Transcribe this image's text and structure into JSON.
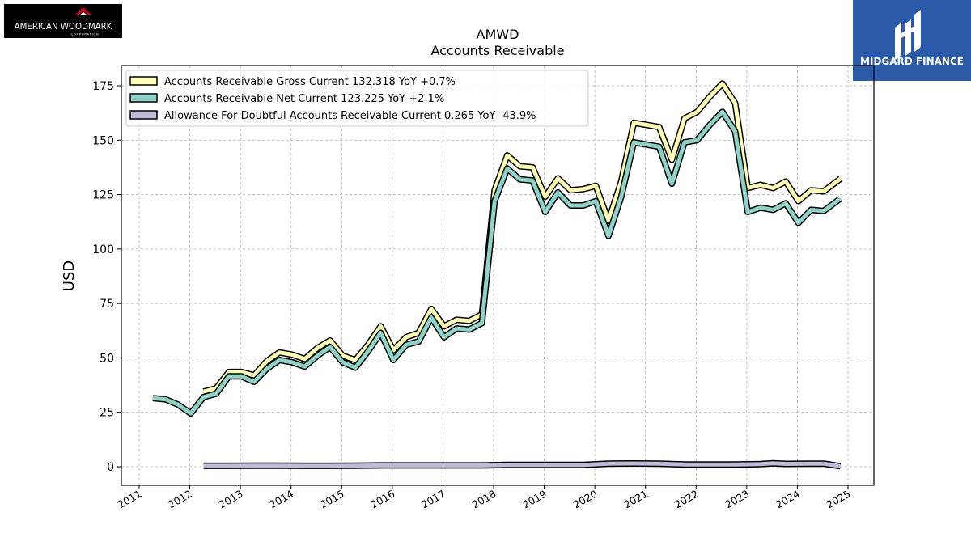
{
  "branding": {
    "left_logo_text": "AMERICAN WOODMARK",
    "left_logo_subtext": "CORPORATION",
    "right_logo_text": "MIDGARD FINANCE",
    "colors": {
      "left_logo_bg": "#000000",
      "left_logo_mark": "#d0021b",
      "right_logo_bg": "#2b5ba8"
    }
  },
  "chart_data": {
    "type": "line",
    "title": "AMWD",
    "subtitle": "Accounts Receivable",
    "ylabel": "USD",
    "xlabel": "",
    "xlim": [
      2010.65,
      2025.15
    ],
    "ylim": [
      -8,
      185
    ],
    "x_ticks": [
      "2011",
      "2012",
      "2013",
      "2014",
      "2015",
      "2016",
      "2017",
      "2018",
      "2019",
      "2020",
      "2021",
      "2022",
      "2023",
      "2024",
      "2025"
    ],
    "y_ticks": [
      0,
      25,
      50,
      75,
      100,
      125,
      150,
      175
    ],
    "grid": true,
    "legend_position": "top-left",
    "series": [
      {
        "name": "Accounts Receivable Gross Current  132.318 YoY +0.7%",
        "color": "#ffffb3",
        "x": [
          2012.27,
          2012.52,
          2012.77,
          2013.02,
          2013.27,
          2013.52,
          2013.77,
          2014.02,
          2014.27,
          2014.52,
          2014.77,
          2015.02,
          2015.27,
          2015.52,
          2015.77,
          2016.02,
          2016.27,
          2016.52,
          2016.77,
          2017.02,
          2017.27,
          2017.52,
          2017.77,
          2018.02,
          2018.27,
          2018.52,
          2018.77,
          2019.02,
          2019.27,
          2019.52,
          2019.77,
          2020.02,
          2020.27,
          2020.52,
          2020.77,
          2021.02,
          2021.27,
          2021.52,
          2021.77,
          2022.02,
          2022.27,
          2022.52,
          2022.77,
          2023.02,
          2023.27,
          2023.52,
          2023.77,
          2024.02,
          2024.27,
          2024.52,
          2024.85
        ],
        "values": [
          34.5,
          36,
          43.5,
          43.5,
          42,
          48.5,
          52.5,
          51.5,
          49.5,
          54.5,
          58,
          51,
          49,
          56,
          64.5,
          53.5,
          59.5,
          61.5,
          72.5,
          64.5,
          67.5,
          67,
          70,
          127,
          143,
          138,
          137.5,
          124,
          132.5,
          127,
          127.5,
          129,
          113,
          131,
          158,
          157,
          156,
          141,
          160,
          163,
          170,
          176,
          167,
          128,
          129.5,
          128,
          131,
          122,
          127,
          126.5,
          132.3
        ]
      },
      {
        "name": "Accounts Receivable Net Current  123.225 YoY +2.1%",
        "color": "#8dd3c7",
        "x": [
          2011.27,
          2011.52,
          2011.77,
          2012.02,
          2012.27,
          2012.52,
          2012.77,
          2013.02,
          2013.27,
          2013.52,
          2013.77,
          2014.02,
          2014.27,
          2014.52,
          2014.77,
          2015.02,
          2015.27,
          2015.52,
          2015.77,
          2016.02,
          2016.27,
          2016.52,
          2016.77,
          2017.02,
          2017.27,
          2017.52,
          2017.77,
          2018.02,
          2018.27,
          2018.52,
          2018.77,
          2019.02,
          2019.27,
          2019.52,
          2019.77,
          2020.02,
          2020.27,
          2020.52,
          2020.77,
          2021.02,
          2021.27,
          2021.52,
          2021.77,
          2022.02,
          2022.27,
          2022.52,
          2022.77,
          2023.02,
          2023.27,
          2023.52,
          2023.77,
          2024.02,
          2024.27,
          2024.52,
          2024.85
        ],
        "values": [
          31.5,
          31,
          28.5,
          24.5,
          32,
          33.5,
          41.5,
          41.5,
          39,
          45,
          49,
          48,
          46,
          51,
          55,
          48,
          45.5,
          53,
          61.5,
          49,
          56,
          57.5,
          68.5,
          59.5,
          63.5,
          63,
          66,
          122,
          137,
          132,
          131.5,
          117,
          126,
          120,
          120,
          122,
          106,
          124,
          149,
          148,
          147,
          130,
          149,
          150,
          157,
          163,
          154,
          117,
          119,
          118,
          121,
          112,
          118,
          117.5,
          123.2
        ]
      },
      {
        "name": "Allowance For Doubtful Accounts Receivable Current  0.265 YoY -43.9%",
        "color": "#bebada",
        "x": [
          2012.27,
          2012.77,
          2013.27,
          2013.77,
          2014.27,
          2014.77,
          2015.27,
          2015.77,
          2016.27,
          2016.77,
          2017.27,
          2017.77,
          2018.27,
          2018.77,
          2019.27,
          2019.77,
          2020.27,
          2020.77,
          2021.27,
          2021.77,
          2022.27,
          2022.77,
          2023.27,
          2023.52,
          2023.77,
          2024.27,
          2024.52,
          2024.85
        ],
        "values": [
          0.4,
          0.4,
          0.5,
          0.5,
          0.4,
          0.4,
          0.5,
          0.6,
          0.6,
          0.6,
          0.6,
          0.6,
          0.8,
          0.8,
          0.8,
          0.8,
          1.4,
          1.5,
          1.4,
          1.0,
          1.0,
          1.0,
          1.2,
          1.6,
          1.3,
          1.4,
          1.4,
          0.265
        ]
      }
    ]
  }
}
